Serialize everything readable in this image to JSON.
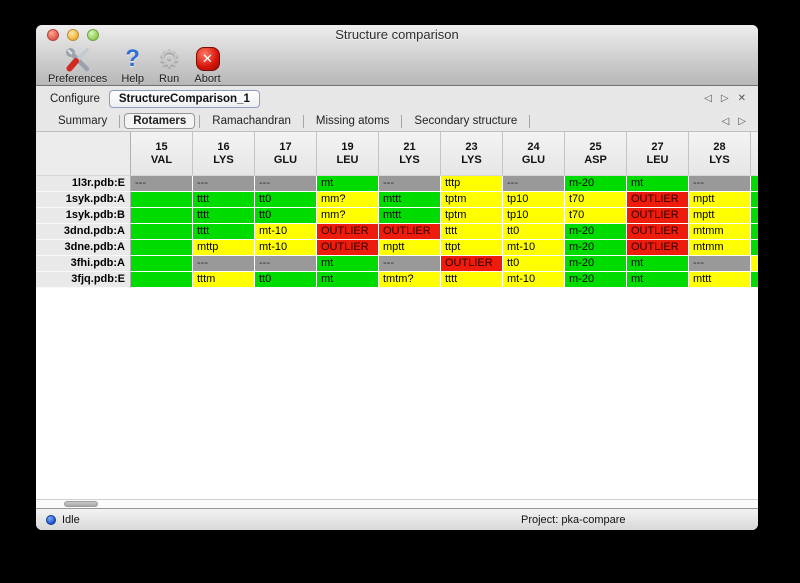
{
  "window": {
    "title": "Structure comparison"
  },
  "toolbar": {
    "items": [
      {
        "label": "Preferences",
        "icon": "preferences"
      },
      {
        "label": "Help",
        "icon": "help"
      },
      {
        "label": "Run",
        "icon": "run"
      },
      {
        "label": "Abort",
        "icon": "abort"
      }
    ]
  },
  "configure": {
    "label": "Configure",
    "value": "StructureComparison_1"
  },
  "tabs": {
    "selected": "Rotamers",
    "items": [
      "Summary",
      "Rotamers",
      "Ramachandran",
      "Missing atoms",
      "Secondary structure"
    ]
  },
  "icons": {
    "help_glyph": "?",
    "run_glyph": "⚙",
    "abort_glyph": "✕",
    "prev_glyph": "◁",
    "next_glyph": "▷",
    "close_glyph": "✕"
  },
  "colors": {
    "good": "#00dc00",
    "warn": "#ffff00",
    "bad": "#ee1c0c",
    "na": "#999999"
  },
  "table": {
    "columns": [
      {
        "num": "15",
        "res": "VAL"
      },
      {
        "num": "16",
        "res": "LYS"
      },
      {
        "num": "17",
        "res": "GLU"
      },
      {
        "num": "19",
        "res": "LEU"
      },
      {
        "num": "21",
        "res": "LYS"
      },
      {
        "num": "23",
        "res": "LYS"
      },
      {
        "num": "24",
        "res": "GLU"
      },
      {
        "num": "25",
        "res": "ASP"
      },
      {
        "num": "27",
        "res": "LEU"
      },
      {
        "num": "28",
        "res": "LYS"
      }
    ],
    "rows": [
      {
        "label": "1l3r.pdb:E",
        "partial": "good",
        "cells": [
          {
            "text": "---",
            "state": "na"
          },
          {
            "text": "---",
            "state": "na"
          },
          {
            "text": "---",
            "state": "na"
          },
          {
            "text": "mt",
            "state": "good"
          },
          {
            "text": "---",
            "state": "na"
          },
          {
            "text": "tttp",
            "state": "warn"
          },
          {
            "text": "---",
            "state": "na"
          },
          {
            "text": "m-20",
            "state": "good"
          },
          {
            "text": "mt",
            "state": "good"
          },
          {
            "text": "---",
            "state": "na"
          }
        ]
      },
      {
        "label": "1syk.pdb:A",
        "partial": "good",
        "cells": [
          {
            "text": "",
            "state": "good"
          },
          {
            "text": "tttt",
            "state": "good"
          },
          {
            "text": "tt0",
            "state": "good"
          },
          {
            "text": "mm?",
            "state": "warn"
          },
          {
            "text": "mttt",
            "state": "good"
          },
          {
            "text": "tptm",
            "state": "warn"
          },
          {
            "text": "tp10",
            "state": "warn"
          },
          {
            "text": "t70",
            "state": "warn"
          },
          {
            "text": "OUTLIER",
            "state": "bad"
          },
          {
            "text": "mptt",
            "state": "warn"
          }
        ]
      },
      {
        "label": "1syk.pdb:B",
        "partial": "good",
        "cells": [
          {
            "text": "",
            "state": "good"
          },
          {
            "text": "tttt",
            "state": "good"
          },
          {
            "text": "tt0",
            "state": "good"
          },
          {
            "text": "mm?",
            "state": "warn"
          },
          {
            "text": "mttt",
            "state": "good"
          },
          {
            "text": "tptm",
            "state": "warn"
          },
          {
            "text": "tp10",
            "state": "warn"
          },
          {
            "text": "t70",
            "state": "warn"
          },
          {
            "text": "OUTLIER",
            "state": "bad"
          },
          {
            "text": "mptt",
            "state": "warn"
          }
        ]
      },
      {
        "label": "3dnd.pdb:A",
        "partial": "good",
        "cells": [
          {
            "text": "",
            "state": "good"
          },
          {
            "text": "tttt",
            "state": "good"
          },
          {
            "text": "mt-10",
            "state": "warn"
          },
          {
            "text": "OUTLIER",
            "state": "bad"
          },
          {
            "text": "OUTLIER",
            "state": "bad"
          },
          {
            "text": "tttt",
            "state": "warn"
          },
          {
            "text": "tt0",
            "state": "warn"
          },
          {
            "text": "m-20",
            "state": "good"
          },
          {
            "text": "OUTLIER",
            "state": "bad"
          },
          {
            "text": "mtmm",
            "state": "warn"
          }
        ]
      },
      {
        "label": "3dne.pdb:A",
        "partial": "good",
        "cells": [
          {
            "text": "",
            "state": "good"
          },
          {
            "text": "mttp",
            "state": "warn"
          },
          {
            "text": "mt-10",
            "state": "warn"
          },
          {
            "text": "OUTLIER",
            "state": "bad"
          },
          {
            "text": "mptt",
            "state": "warn"
          },
          {
            "text": "ttpt",
            "state": "warn"
          },
          {
            "text": "mt-10",
            "state": "warn"
          },
          {
            "text": "m-20",
            "state": "good"
          },
          {
            "text": "OUTLIER",
            "state": "bad"
          },
          {
            "text": "mtmm",
            "state": "warn"
          }
        ]
      },
      {
        "label": "3fhi.pdb:A",
        "partial": "warn",
        "cells": [
          {
            "text": "",
            "state": "good"
          },
          {
            "text": "---",
            "state": "na"
          },
          {
            "text": "---",
            "state": "na"
          },
          {
            "text": "mt",
            "state": "good"
          },
          {
            "text": "---",
            "state": "na"
          },
          {
            "text": "OUTLIER",
            "state": "bad"
          },
          {
            "text": "tt0",
            "state": "warn"
          },
          {
            "text": "m-20",
            "state": "good"
          },
          {
            "text": "mt",
            "state": "good"
          },
          {
            "text": "---",
            "state": "na"
          }
        ]
      },
      {
        "label": "3fjq.pdb:E",
        "partial": "good",
        "cells": [
          {
            "text": "",
            "state": "good"
          },
          {
            "text": "tttm",
            "state": "warn"
          },
          {
            "text": "tt0",
            "state": "good"
          },
          {
            "text": "mt",
            "state": "good"
          },
          {
            "text": "tmtm?",
            "state": "warn"
          },
          {
            "text": "tttt",
            "state": "warn"
          },
          {
            "text": "mt-10",
            "state": "warn"
          },
          {
            "text": "m-20",
            "state": "good"
          },
          {
            "text": "mt",
            "state": "good"
          },
          {
            "text": "mttt",
            "state": "warn"
          }
        ]
      }
    ]
  },
  "status": {
    "state": "Idle",
    "project": "Project: pka-compare"
  }
}
